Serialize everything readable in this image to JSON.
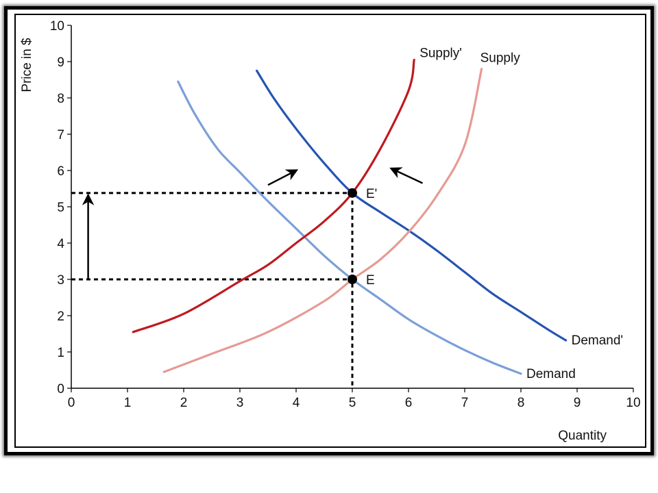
{
  "chart_data": {
    "type": "line",
    "title": "",
    "xlabel": "Quantity",
    "ylabel": "Price in $",
    "xlim": [
      0,
      10
    ],
    "ylim": [
      0,
      10
    ],
    "xticks": [
      "0",
      "1",
      "2",
      "3",
      "4",
      "5",
      "6",
      "7",
      "8",
      "9",
      "10"
    ],
    "yticks": [
      "0",
      "1",
      "2",
      "3",
      "4",
      "5",
      "6",
      "7",
      "8",
      "9",
      "10"
    ],
    "grid": false,
    "series": [
      {
        "name": "Demand",
        "color": "#7b9fd8",
        "points": [
          [
            1.9,
            8.45
          ],
          [
            2.2,
            7.55
          ],
          [
            2.6,
            6.6
          ],
          [
            3.0,
            5.95
          ],
          [
            3.5,
            5.15
          ],
          [
            4.0,
            4.4
          ],
          [
            4.5,
            3.65
          ],
          [
            5.0,
            3.0
          ],
          [
            5.5,
            2.45
          ],
          [
            6.0,
            1.9
          ],
          [
            6.5,
            1.45
          ],
          [
            7.0,
            1.05
          ],
          [
            7.5,
            0.7
          ],
          [
            8.0,
            0.4
          ]
        ]
      },
      {
        "name": "Demand'",
        "color": "#2454b2",
        "points": [
          [
            3.3,
            8.75
          ],
          [
            3.6,
            8.0
          ],
          [
            4.0,
            7.15
          ],
          [
            4.5,
            6.2
          ],
          [
            5.0,
            5.38
          ],
          [
            5.5,
            4.85
          ],
          [
            6.0,
            4.35
          ],
          [
            6.5,
            3.8
          ],
          [
            7.0,
            3.2
          ],
          [
            7.5,
            2.6
          ],
          [
            8.0,
            2.1
          ],
          [
            8.5,
            1.6
          ],
          [
            8.8,
            1.32
          ]
        ]
      },
      {
        "name": "Supply",
        "color": "#e59b93",
        "points": [
          [
            1.65,
            0.45
          ],
          [
            2.5,
            0.95
          ],
          [
            3.5,
            1.55
          ],
          [
            4.5,
            2.4
          ],
          [
            5.0,
            3.0
          ],
          [
            5.5,
            3.55
          ],
          [
            6.0,
            4.3
          ],
          [
            6.5,
            5.3
          ],
          [
            7.0,
            6.7
          ],
          [
            7.3,
            8.8
          ]
        ]
      },
      {
        "name": "Supply'",
        "color": "#c0191f",
        "points": [
          [
            1.1,
            1.55
          ],
          [
            2.0,
            2.05
          ],
          [
            3.0,
            2.95
          ],
          [
            3.5,
            3.4
          ],
          [
            4.0,
            4.0
          ],
          [
            4.5,
            4.6
          ],
          [
            5.0,
            5.38
          ],
          [
            5.5,
            6.6
          ],
          [
            6.0,
            8.2
          ],
          [
            6.1,
            9.05
          ]
        ]
      }
    ],
    "points": [
      {
        "label": "E",
        "x": 5.0,
        "y": 3.0
      },
      {
        "label": "E'",
        "x": 5.0,
        "y": 5.38
      }
    ],
    "annotations": {
      "price_arrow": {
        "x": 0.3,
        "from_y": 3.0,
        "to_y": 5.38
      },
      "shift_arrows": [
        {
          "from": [
            3.5,
            5.6
          ],
          "to": [
            4.0,
            6.0
          ],
          "target": "Demand'"
        },
        {
          "from": [
            6.25,
            5.65
          ],
          "to": [
            5.7,
            6.05
          ],
          "target": "Supply'"
        }
      ]
    }
  }
}
